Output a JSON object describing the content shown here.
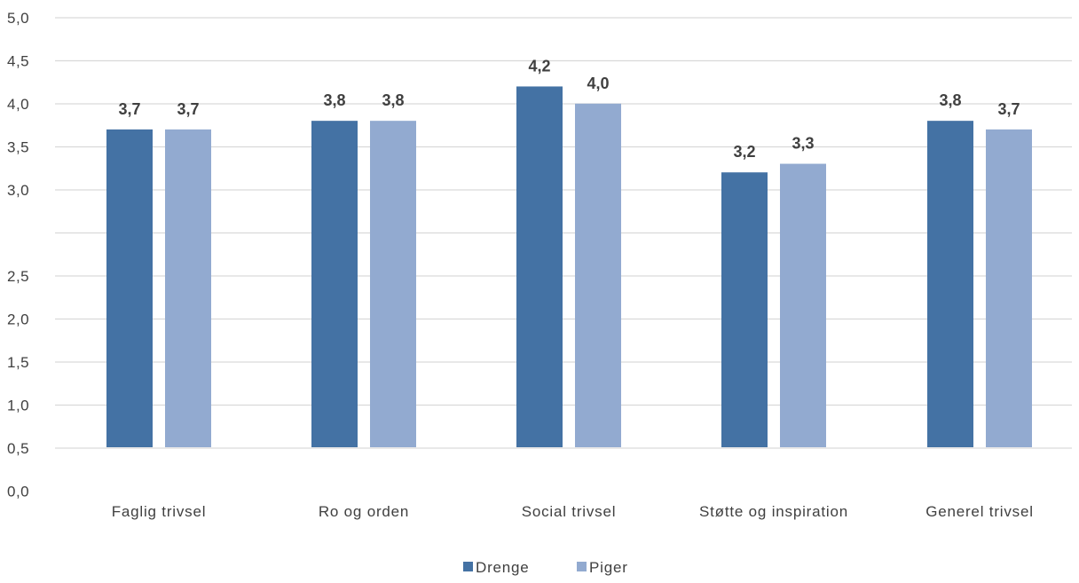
{
  "chart_data": {
    "type": "bar",
    "categories": [
      "Faglig trivsel",
      "Ro og orden",
      "Social trivsel",
      "Støtte og inspiration",
      "Generel trivsel"
    ],
    "series": [
      {
        "name": "Drenge",
        "color": "#4472a4",
        "values": [
          3.7,
          3.8,
          4.2,
          3.2,
          3.8
        ],
        "labels": [
          "3,7",
          "3,8",
          "4,2",
          "3,2",
          "3,8"
        ]
      },
      {
        "name": "Piger",
        "color": "#92aad0",
        "values": [
          3.7,
          3.8,
          4.0,
          3.3,
          3.7
        ],
        "labels": [
          "3,7",
          "3,8",
          "4,0",
          "3,3",
          "3,7"
        ]
      }
    ],
    "y_ticks": [
      {
        "label": "5,0",
        "value": 5.0
      },
      {
        "label": "4,5",
        "value": 4.5
      },
      {
        "label": "4,0",
        "value": 4.0
      },
      {
        "label": "3,5",
        "value": 3.5
      },
      {
        "label": "3,0",
        "value": 3.0
      },
      {
        "label": "",
        "value": null
      },
      {
        "label": "2,5",
        "value": 2.5
      },
      {
        "label": "2,0",
        "value": 2.0
      },
      {
        "label": "1,5",
        "value": 1.5
      },
      {
        "label": "1,0",
        "value": 1.0
      },
      {
        "label": "0,5",
        "value": 0.5
      },
      {
        "label": "0,0",
        "value": 0.0
      }
    ],
    "ylim": [
      0,
      5
    ],
    "grid": true,
    "legend_position": "bottom-center",
    "title": "",
    "xlabel": "",
    "ylabel": ""
  }
}
